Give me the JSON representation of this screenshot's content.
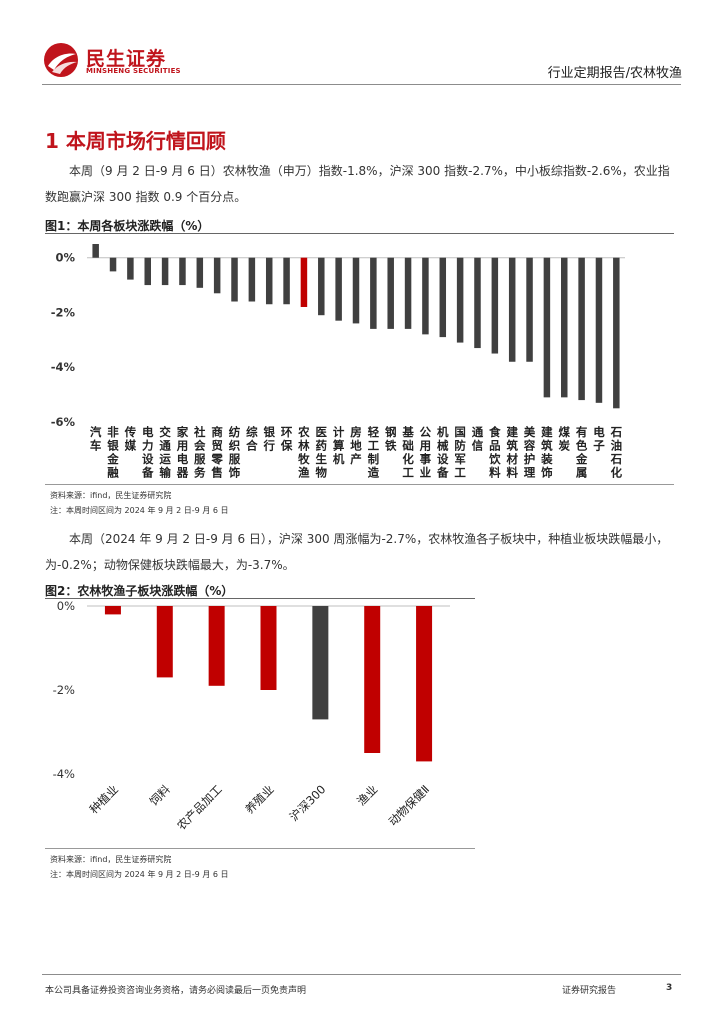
{
  "header": {
    "brand_cn": "民生证券",
    "brand_en": "MINSHENG SECURITIES",
    "report_type": "行业定期报告/农林牧渔"
  },
  "section_title": "1 本周市场行情回顾",
  "paragraph1": "本周（9 月 2 日-9 月 6 日）农林牧渔（申万）指数-1.8%，沪深 300 指数-2.7%，中小板综指数-2.6%，农业指数跑赢沪深 300 指数 0.9 个百分点。",
  "figure1": {
    "title": "图1：本周各板块涨跌幅（%）",
    "source": "资料来源：ifind，民生证券研究院",
    "period": "注：本周时间区间为 2024 年 9 月 2 日-9 月 6 日"
  },
  "paragraph2": "本周（2024 年 9 月 2 日-9 月 6 日），沪深 300 周涨幅为-2.7%，农林牧渔各子板块中，种植业板块跌幅最小，为-0.2%；动物保健板块跌幅最大，为-3.7%。",
  "figure2": {
    "title": "图2：农林牧渔子板块涨跌幅（%）",
    "source": "资料来源：ifind，民生证券研究院",
    "period": "注：本周时间区间为 2024 年 9 月 2 日-9 月 6 日"
  },
  "footer": {
    "disclaimer": "本公司具备证券投资咨询业务资格，请务必阅读最后一页免责声明",
    "report_label": "证券研究报告",
    "page_number": "3"
  },
  "colors": {
    "brand_red": "#c0141c",
    "bar_gray": "#404040",
    "bar_red": "#c00000"
  },
  "chart_data": [
    {
      "type": "bar",
      "categories": [
        "汽车",
        "非银金融",
        "传媒",
        "电力设备",
        "交通运输",
        "家用电器",
        "社会服务",
        "商贸零售",
        "纺织服饰",
        "综合",
        "银行",
        "环保",
        "农林牧渔",
        "医药生物",
        "计算机",
        "房地产",
        "轻工制造",
        "钢铁",
        "基础化工",
        "公用事业",
        "机械设备",
        "国防军工",
        "通信",
        "食品饮料",
        "建筑材料",
        "美容护理",
        "建筑装饰",
        "煤炭",
        "有色金属",
        "电子",
        "石油石化"
      ],
      "values": [
        0.5,
        -0.5,
        -0.8,
        -1.0,
        -1.0,
        -1.0,
        -1.1,
        -1.3,
        -1.6,
        -1.6,
        -1.7,
        -1.7,
        -1.8,
        -2.1,
        -2.3,
        -2.4,
        -2.6,
        -2.6,
        -2.6,
        -2.8,
        -2.9,
        -3.1,
        -3.3,
        -3.5,
        -3.8,
        -3.8,
        -5.1,
        -5.1,
        -5.2,
        -5.3,
        -5.5
      ],
      "highlight": "农林牧渔",
      "ylim": [
        -6,
        0.5
      ],
      "yticks": [
        "0%",
        "-2%",
        "-4%",
        "-6%"
      ],
      "ytick_values": [
        0,
        -2,
        -4,
        -6
      ]
    },
    {
      "type": "bar",
      "categories": [
        "种植业",
        "饲料",
        "农产品加工",
        "养殖业",
        "沪深300",
        "渔业",
        "动物保健Ⅱ"
      ],
      "values": [
        -0.2,
        -1.7,
        -1.9,
        -2.0,
        -2.7,
        -3.5,
        -3.7
      ],
      "highlight": "沪深300",
      "ylim": [
        -4,
        0
      ],
      "yticks": [
        "0%",
        "-2%",
        "-4%"
      ],
      "ytick_values": [
        0,
        -2,
        -4
      ]
    }
  ]
}
